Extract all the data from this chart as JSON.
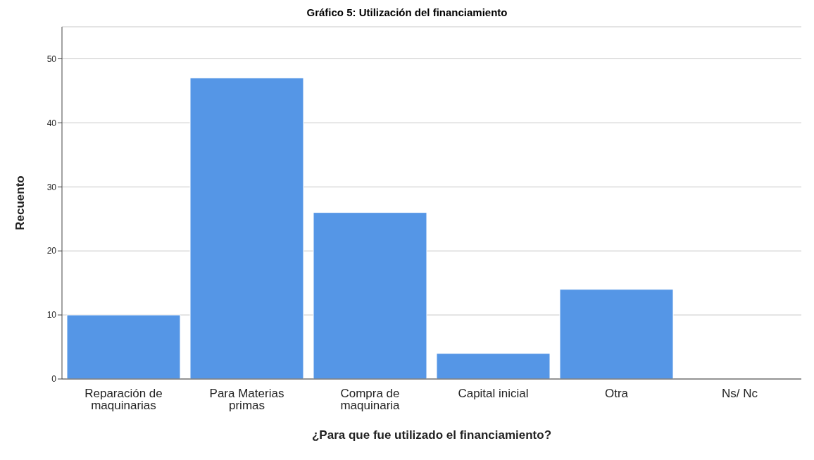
{
  "chart_data": {
    "type": "bar",
    "title": "Gráfico 5: Utilización del financiamiento",
    "xlabel": "¿Para que fue utilizado el financiamiento?",
    "ylabel": "Recuento",
    "categories": [
      "Reparación de maquinarias",
      "Para Materias primas",
      "Compra de maquinaria",
      "Capital inicial",
      "Otra",
      "Ns/ Nc"
    ],
    "values": [
      10,
      47,
      26,
      4,
      14,
      0
    ],
    "color": "#5596e6",
    "ylim": [
      0,
      55
    ],
    "yticks": [
      0,
      10,
      20,
      30,
      40,
      50
    ],
    "grid": "y"
  }
}
